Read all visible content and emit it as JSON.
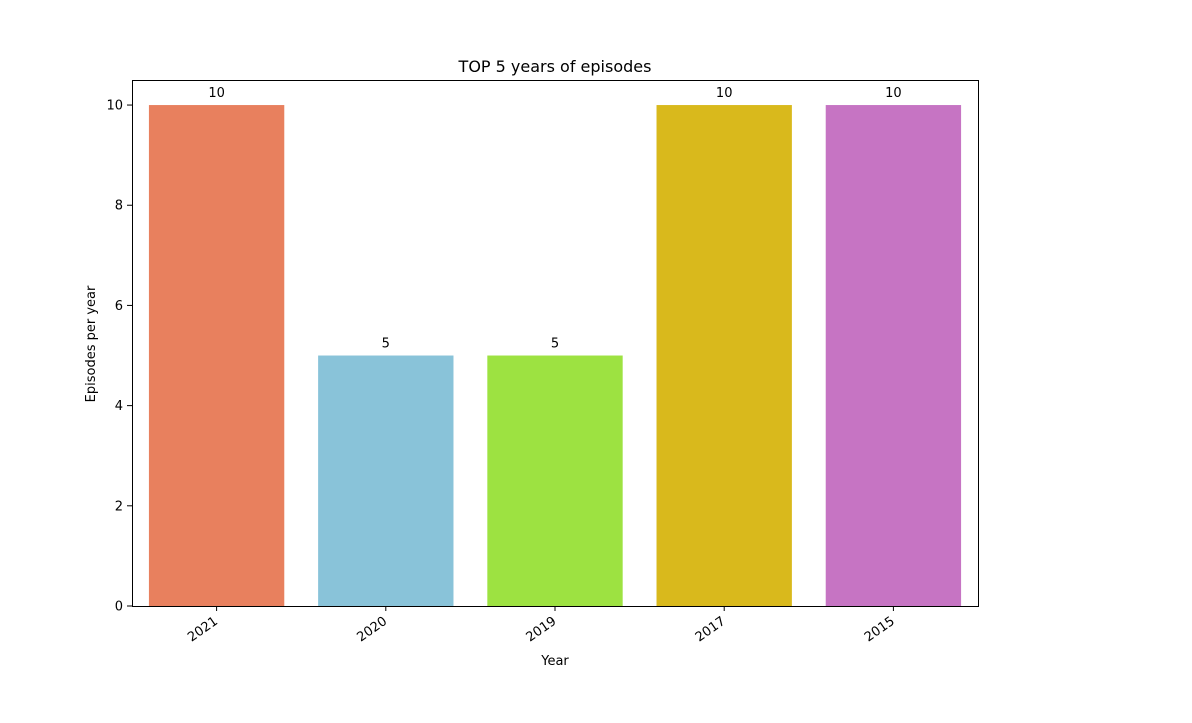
{
  "chart_data": {
    "type": "bar",
    "title": "TOP 5 years of episodes",
    "xlabel": "Year",
    "ylabel": "Episodes per year",
    "categories": [
      "2021",
      "2020",
      "2019",
      "2017",
      "2015"
    ],
    "values": [
      10,
      5,
      5,
      10,
      10
    ],
    "data_labels": [
      "10",
      "5",
      "5",
      "10",
      "10"
    ],
    "colors": [
      "#e8805e",
      "#89c3d9",
      "#9de241",
      "#d9b91c",
      "#c674c3"
    ],
    "ylim": [
      0,
      10.5
    ],
    "yticks": [
      0,
      2,
      4,
      6,
      8,
      10
    ],
    "ytick_labels": [
      "0",
      "2",
      "4",
      "6",
      "8",
      "10"
    ],
    "xtick_rotation": -35,
    "grid": false,
    "legend": "none"
  }
}
